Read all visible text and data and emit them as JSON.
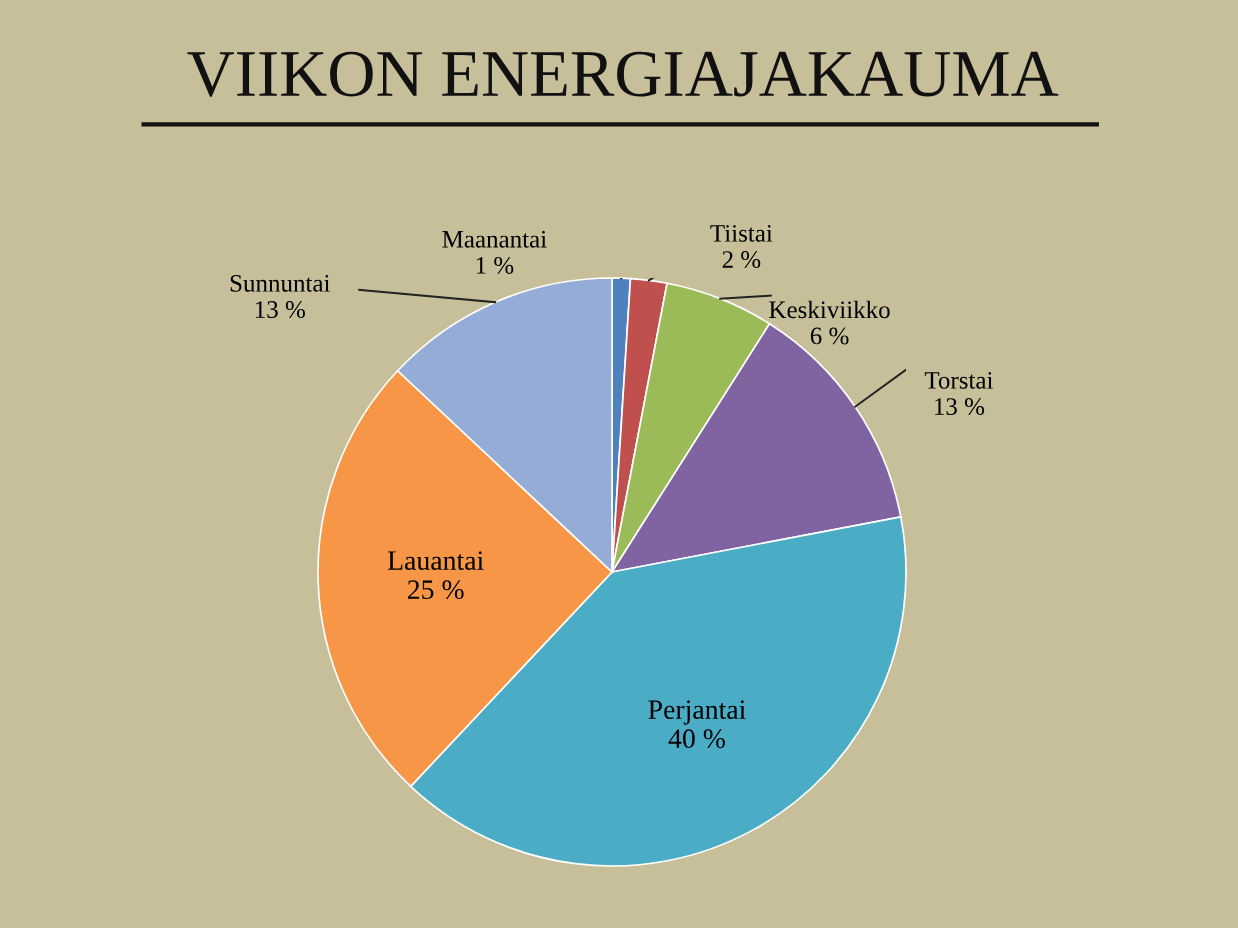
{
  "chart_data": {
    "type": "pie",
    "title": "VIIKON ENERGIAJAKAUMA",
    "categories": [
      "Maanantai",
      "Tiistai",
      "Keskiviikko",
      "Torstai",
      "Perjantai",
      "Lauantai",
      "Sunnuntai"
    ],
    "values": [
      1,
      2,
      6,
      13,
      40,
      25,
      13
    ],
    "value_labels": [
      "1 %",
      "2 %",
      "6 %",
      "13 %",
      "40 %",
      "25 %",
      "13 %"
    ],
    "colors": [
      "#4f81bd",
      "#c0504d",
      "#9bbb59",
      "#8064a2",
      "#4bacc6",
      "#f79646",
      "#95acd6"
    ]
  }
}
